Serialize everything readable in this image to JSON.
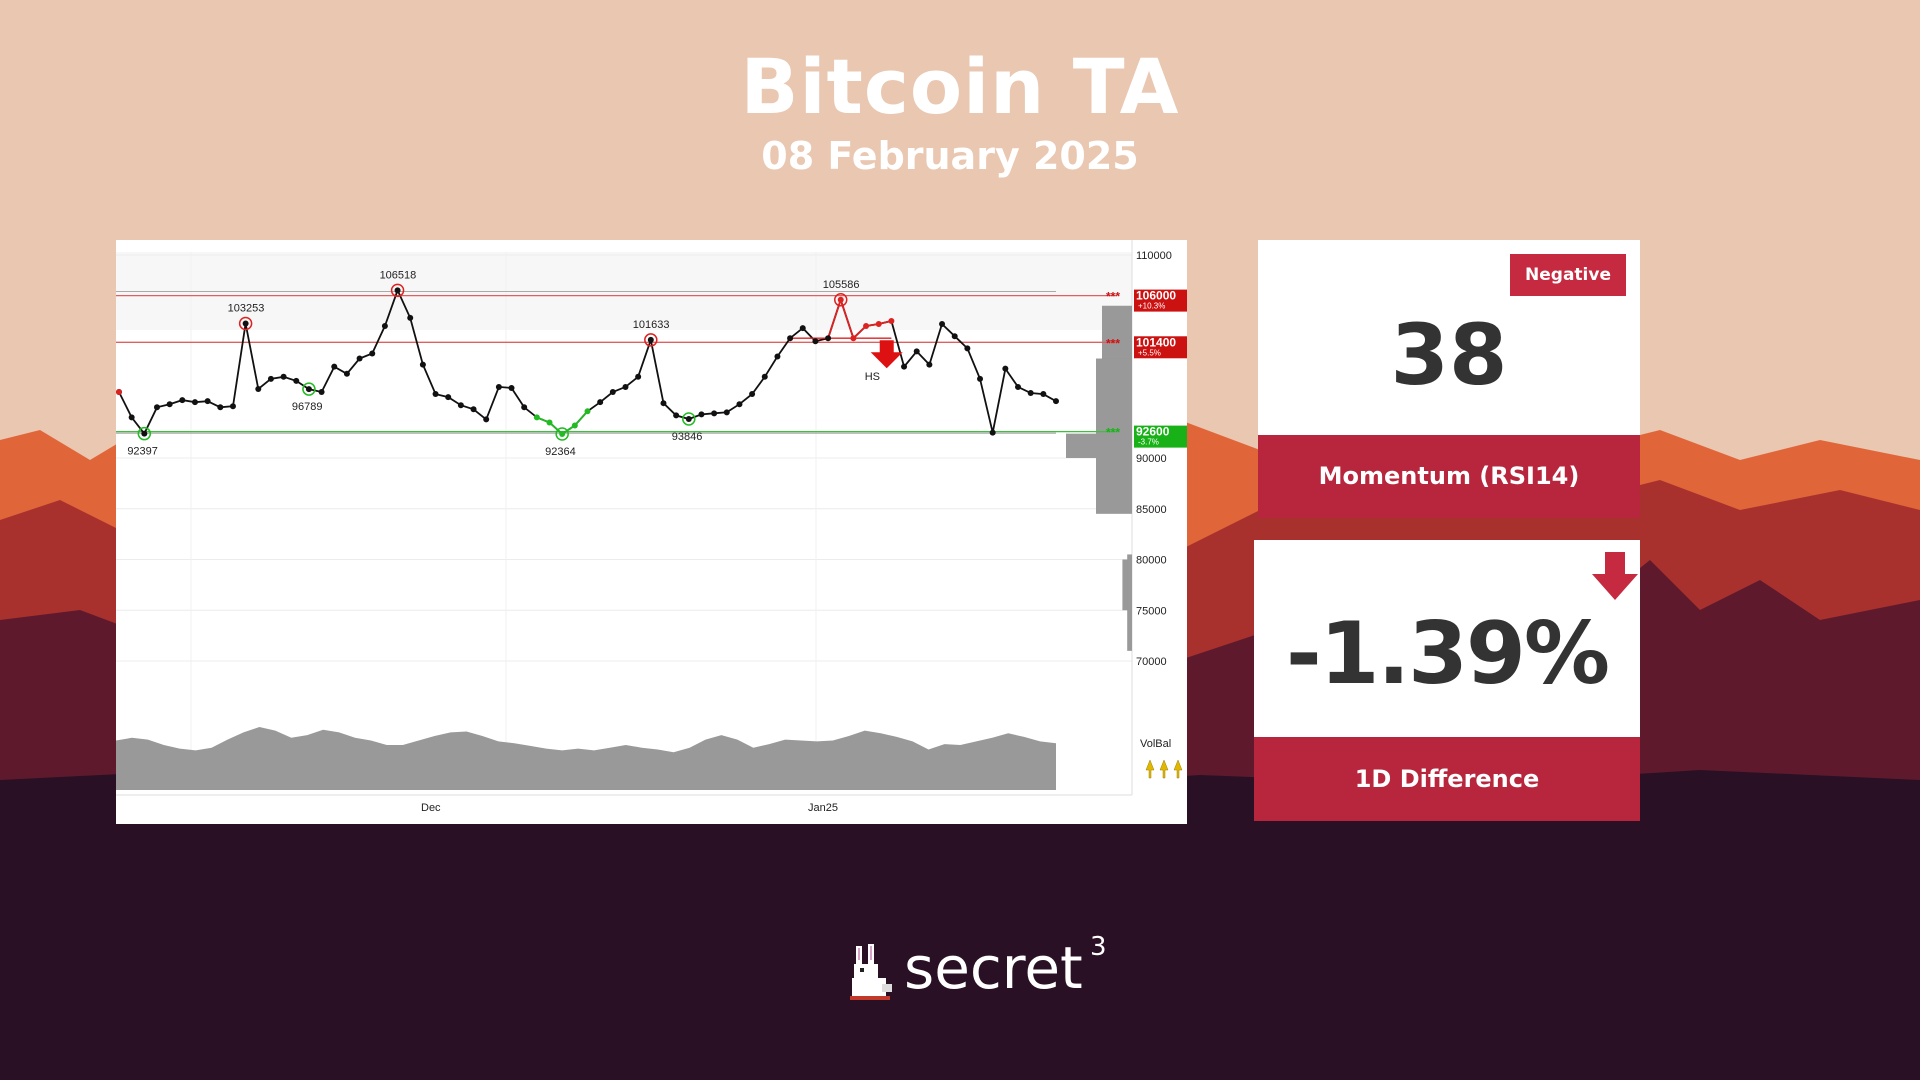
{
  "header": {
    "title": "Bitcoin TA",
    "date": "08 February 2025"
  },
  "colors": {
    "background_sky": "#e9c7b1",
    "mountain_orange": "#e0663a",
    "mountain_red": "#a8312e",
    "dark_ground": "#2a1024",
    "card_red": "#b7263c",
    "resistance": "#d62020",
    "support": "#22aa22"
  },
  "rsi": {
    "badge": "Negative",
    "value": "38",
    "label": "Momentum (RSI14)"
  },
  "difference": {
    "value": "-1.39%",
    "label": "1D Difference",
    "direction_icon": "down-arrow-icon"
  },
  "logo": {
    "text": "secret",
    "superscript": "3",
    "icon": "rabbit-icon"
  },
  "chart_data": {
    "type": "line",
    "x_ticks": [
      "Dec",
      "Jan25"
    ],
    "y_ticks": [
      70000,
      75000,
      80000,
      85000,
      90000,
      110000
    ],
    "ylim": [
      65000,
      111000
    ],
    "series": [
      {
        "values": [
          96500,
          94000,
          92397,
          95000,
          95300,
          95700,
          95500,
          95600,
          95000,
          95100,
          103253,
          96800,
          97800,
          98000,
          97600,
          96789,
          96500,
          99000,
          98300,
          99800,
          100300,
          103000,
          106518,
          103800,
          99200,
          96300,
          96000,
          95200,
          94800,
          93800,
          97000,
          96900,
          95000,
          94000,
          93500,
          92364,
          93200,
          94600,
          95500,
          96500,
          97000,
          98000,
          101633,
          95400,
          94200,
          93846,
          94300,
          94400,
          94500,
          95300,
          96300,
          98000,
          100000,
          101800,
          102800,
          101500,
          101800,
          105586,
          101800,
          103000,
          103200,
          103500,
          99000,
          100500,
          99200,
          103200,
          102000,
          100800,
          97800,
          92500,
          98800,
          97000,
          96400,
          96300,
          95600
        ]
      }
    ],
    "highs": [
      103253,
      106518,
      101633,
      105586
    ],
    "lows": [
      92397,
      96789,
      92364,
      93846
    ],
    "levels": [
      {
        "value": 106000,
        "label": "106000",
        "pct": "+10.3%",
        "kind": "resistance"
      },
      {
        "value": 101400,
        "label": "101400",
        "pct": "+5.5%",
        "kind": "resistance"
      },
      {
        "value": 92600,
        "label": "92600",
        "pct": "-3.7%",
        "kind": "support"
      }
    ],
    "annotations": [
      "HS"
    ],
    "volume_label": "VolBal",
    "volume_profile": [
      {
        "lo": 90000,
        "hi": 92400,
        "w": 0.55
      },
      {
        "lo": 90000,
        "hi": 105000,
        "w": 0.25
      },
      {
        "lo": 84500,
        "hi": 99800,
        "w": 0.3
      },
      {
        "lo": 75000,
        "hi": 80000,
        "w": 0.08
      },
      {
        "lo": 71000,
        "hi": 80500,
        "w": 0.04
      }
    ],
    "volume": [
      0.55,
      0.58,
      0.56,
      0.5,
      0.46,
      0.44,
      0.47,
      0.56,
      0.64,
      0.7,
      0.66,
      0.58,
      0.61,
      0.67,
      0.64,
      0.58,
      0.55,
      0.5,
      0.5,
      0.55,
      0.6,
      0.64,
      0.65,
      0.6,
      0.54,
      0.52,
      0.49,
      0.46,
      0.44,
      0.46,
      0.44,
      0.47,
      0.5,
      0.47,
      0.45,
      0.42,
      0.47,
      0.56,
      0.61,
      0.56,
      0.47,
      0.51,
      0.56,
      0.55,
      0.54,
      0.55,
      0.6,
      0.66,
      0.63,
      0.59,
      0.54,
      0.45,
      0.51,
      0.5,
      0.54,
      0.58,
      0.63,
      0.59,
      0.54,
      0.52
    ]
  }
}
